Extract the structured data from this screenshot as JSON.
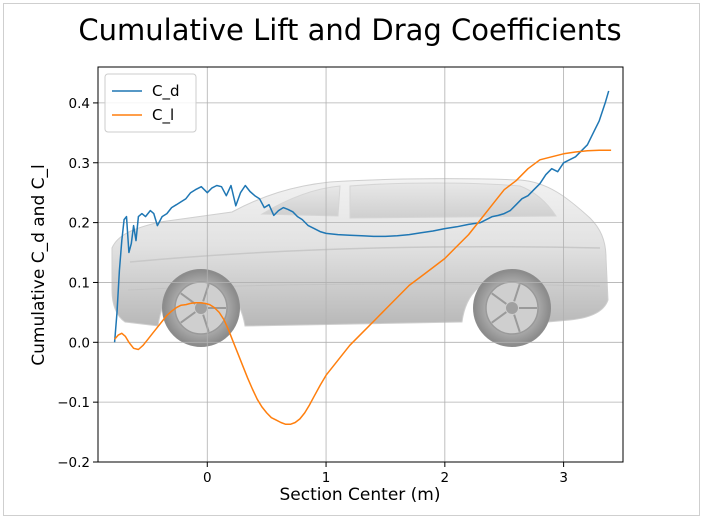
{
  "chart_data": {
    "type": "line",
    "title": "Cumulative Lift and Drag Coefficients",
    "xlabel": "Section Center (m)",
    "ylabel": "Cumulative C_d and C_l",
    "xlim": [
      -0.92,
      3.5
    ],
    "ylim": [
      -0.2,
      0.46
    ],
    "xticks": [
      0,
      1,
      2,
      3
    ],
    "yticks": [
      -0.2,
      -0.1,
      0.0,
      0.1,
      0.2,
      0.3,
      0.4
    ],
    "xtick_labels": [
      "0",
      "1",
      "2",
      "3"
    ],
    "ytick_labels": [
      "−0.2",
      "−0.1",
      "0.0",
      "0.1",
      "0.2",
      "0.3",
      "0.4"
    ],
    "grid": true,
    "legend_position": "top-left",
    "background_image": "car-side-view",
    "series": [
      {
        "name": "C_d",
        "color": "#1f77b4",
        "x": [
          -0.78,
          -0.76,
          -0.74,
          -0.72,
          -0.7,
          -0.68,
          -0.66,
          -0.64,
          -0.62,
          -0.6,
          -0.58,
          -0.55,
          -0.52,
          -0.48,
          -0.45,
          -0.42,
          -0.38,
          -0.34,
          -0.3,
          -0.26,
          -0.22,
          -0.18,
          -0.14,
          -0.1,
          -0.05,
          0.0,
          0.04,
          0.08,
          0.12,
          0.16,
          0.2,
          0.24,
          0.28,
          0.32,
          0.36,
          0.4,
          0.44,
          0.48,
          0.52,
          0.56,
          0.6,
          0.64,
          0.68,
          0.72,
          0.76,
          0.8,
          0.85,
          0.9,
          0.95,
          1.0,
          1.1,
          1.2,
          1.3,
          1.4,
          1.5,
          1.6,
          1.7,
          1.8,
          1.9,
          2.0,
          2.1,
          2.2,
          2.3,
          2.4,
          2.45,
          2.5,
          2.55,
          2.6,
          2.65,
          2.7,
          2.75,
          2.8,
          2.85,
          2.9,
          2.95,
          3.0,
          3.05,
          3.1,
          3.15,
          3.2,
          3.25,
          3.3,
          3.35,
          3.38
        ],
        "values": [
          0.0,
          0.05,
          0.12,
          0.17,
          0.205,
          0.21,
          0.15,
          0.165,
          0.195,
          0.17,
          0.21,
          0.215,
          0.21,
          0.22,
          0.215,
          0.195,
          0.21,
          0.215,
          0.225,
          0.23,
          0.235,
          0.24,
          0.25,
          0.255,
          0.26,
          0.25,
          0.258,
          0.262,
          0.26,
          0.245,
          0.262,
          0.228,
          0.25,
          0.262,
          0.252,
          0.245,
          0.24,
          0.225,
          0.23,
          0.212,
          0.22,
          0.225,
          0.222,
          0.218,
          0.21,
          0.205,
          0.195,
          0.19,
          0.185,
          0.182,
          0.18,
          0.179,
          0.178,
          0.177,
          0.177,
          0.178,
          0.18,
          0.183,
          0.186,
          0.19,
          0.193,
          0.197,
          0.2,
          0.21,
          0.212,
          0.215,
          0.22,
          0.23,
          0.24,
          0.245,
          0.255,
          0.265,
          0.28,
          0.29,
          0.285,
          0.3,
          0.305,
          0.31,
          0.32,
          0.33,
          0.35,
          0.37,
          0.4,
          0.42
        ]
      },
      {
        "name": "C_l",
        "color": "#ff7f0e",
        "x": [
          -0.78,
          -0.75,
          -0.72,
          -0.69,
          -0.66,
          -0.62,
          -0.58,
          -0.54,
          -0.5,
          -0.46,
          -0.42,
          -0.38,
          -0.34,
          -0.3,
          -0.26,
          -0.22,
          -0.18,
          -0.14,
          -0.1,
          -0.06,
          -0.02,
          0.02,
          0.06,
          0.1,
          0.14,
          0.18,
          0.22,
          0.26,
          0.3,
          0.34,
          0.38,
          0.42,
          0.46,
          0.5,
          0.54,
          0.58,
          0.62,
          0.66,
          0.7,
          0.74,
          0.78,
          0.82,
          0.86,
          0.9,
          0.95,
          1.0,
          1.1,
          1.2,
          1.3,
          1.4,
          1.5,
          1.6,
          1.7,
          1.8,
          1.9,
          2.0,
          2.1,
          2.2,
          2.3,
          2.4,
          2.5,
          2.6,
          2.7,
          2.8,
          2.9,
          3.0,
          3.1,
          3.2,
          3.3,
          3.4
        ],
        "values": [
          0.005,
          0.012,
          0.015,
          0.01,
          0.0,
          -0.01,
          -0.012,
          -0.005,
          0.005,
          0.015,
          0.025,
          0.035,
          0.045,
          0.052,
          0.058,
          0.062,
          0.063,
          0.065,
          0.066,
          0.066,
          0.065,
          0.063,
          0.058,
          0.05,
          0.038,
          0.02,
          0.0,
          -0.02,
          -0.04,
          -0.06,
          -0.078,
          -0.095,
          -0.108,
          -0.118,
          -0.126,
          -0.13,
          -0.134,
          -0.137,
          -0.137,
          -0.134,
          -0.128,
          -0.118,
          -0.105,
          -0.09,
          -0.072,
          -0.055,
          -0.03,
          -0.005,
          0.015,
          0.035,
          0.055,
          0.075,
          0.095,
          0.11,
          0.125,
          0.14,
          0.16,
          0.18,
          0.205,
          0.23,
          0.255,
          0.27,
          0.29,
          0.305,
          0.31,
          0.315,
          0.318,
          0.32,
          0.321,
          0.321
        ]
      }
    ]
  }
}
